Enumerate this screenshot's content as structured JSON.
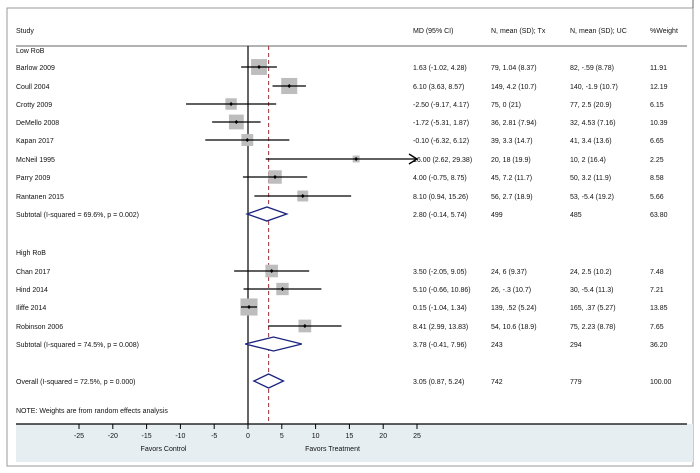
{
  "chart_data": {
    "type": "forest",
    "headers": {
      "study": "Study",
      "md": "MD (95% CI)",
      "tx": "N, mean (SD); Tx",
      "uc": "N, mean (SD); UC",
      "weight": "%Weight"
    },
    "groups": [
      {
        "label": "Low RoB",
        "studies": [
          {
            "name": "Barlow 2009",
            "md": 1.63,
            "lo": -1.02,
            "hi": 4.28,
            "ci": "1.63 (-1.02, 4.28)",
            "tx": "79, 1.04 (8.37)",
            "uc": "82, -.59 (8.78)",
            "weight": "11.91"
          },
          {
            "name": "Coull 2004",
            "md": 6.1,
            "lo": 3.63,
            "hi": 8.57,
            "ci": "6.10 (3.63, 8.57)",
            "tx": "149, 4.2 (10.7)",
            "uc": "140, -1.9 (10.7)",
            "weight": "12.19"
          },
          {
            "name": "Crotty 2009",
            "md": -2.5,
            "lo": -9.17,
            "hi": 4.17,
            "ci": "-2.50 (-9.17, 4.17)",
            "tx": "75, 0 (21)",
            "uc": "77, 2.5 (20.9)",
            "weight": "6.15"
          },
          {
            "name": "DeMello 2008",
            "md": -1.72,
            "lo": -5.31,
            "hi": 1.87,
            "ci": "-1.72 (-5.31, 1.87)",
            "tx": "36, 2.81 (7.94)",
            "uc": "32, 4.53 (7.16)",
            "weight": "10.39"
          },
          {
            "name": "Kapan 2017",
            "md": -0.1,
            "lo": -6.32,
            "hi": 6.12,
            "ci": "-0.10 (-6.32, 6.12)",
            "tx": "39, 3.3 (14.7)",
            "uc": "41, 3.4 (13.6)",
            "weight": "6.65"
          },
          {
            "name": "McNeil 1995",
            "md": 16.0,
            "lo": 2.62,
            "hi": 29.38,
            "ci": "16.00 (2.62, 29.38)",
            "tx": "20, 18 (19.9)",
            "uc": "10, 2 (16.4)",
            "weight": "2.25",
            "arrow": true
          },
          {
            "name": "Parry 2009",
            "md": 4.0,
            "lo": -0.75,
            "hi": 8.75,
            "ci": "4.00 (-0.75, 8.75)",
            "tx": "45, 7.2 (11.7)",
            "uc": "50, 3.2 (11.9)",
            "weight": "8.58"
          },
          {
            "name": "Rantanen 2015",
            "md": 8.1,
            "lo": 0.94,
            "hi": 15.26,
            "ci": "8.10 (0.94, 15.26)",
            "tx": "56, 2.7 (18.9)",
            "uc": "53, -5.4 (19.2)",
            "weight": "5.66"
          }
        ],
        "subtotal": {
          "label": "Subtotal  (I-squared = 69.6%, p = 0.002)",
          "md": 2.8,
          "lo": -0.14,
          "hi": 5.74,
          "ci": "2.80 (-0.14, 5.74)",
          "tx": "499",
          "uc": "485",
          "weight": "63.80"
        }
      },
      {
        "label": "High RoB",
        "studies": [
          {
            "name": "Chan 2017",
            "md": 3.5,
            "lo": -2.05,
            "hi": 9.05,
            "ci": "3.50 (-2.05, 9.05)",
            "tx": "24, 6 (9.37)",
            "uc": "24, 2.5 (10.2)",
            "weight": "7.48"
          },
          {
            "name": "Hind 2014",
            "md": 5.1,
            "lo": -0.66,
            "hi": 10.86,
            "ci": "5.10 (-0.66, 10.86)",
            "tx": "26, -.3 (10.7)",
            "uc": "30, -5.4 (11.3)",
            "weight": "7.21"
          },
          {
            "name": "Iliffe 2014",
            "md": 0.15,
            "lo": -1.04,
            "hi": 1.34,
            "ci": "0.15 (-1.04, 1.34)",
            "tx": "139, .52 (5.24)",
            "uc": "165, .37 (5.27)",
            "weight": "13.85"
          },
          {
            "name": "Robinson 2006",
            "md": 8.41,
            "lo": 2.99,
            "hi": 13.83,
            "ci": "8.41 (2.99, 13.83)",
            "tx": "54, 10.6 (18.9)",
            "uc": "75, 2.23 (8.78)",
            "weight": "7.65"
          }
        ],
        "subtotal": {
          "label": "Subtotal  (I-squared = 74.5%, p = 0.008)",
          "md": 3.78,
          "lo": -0.41,
          "hi": 7.96,
          "ci": "3.78 (-0.41, 7.96)",
          "tx": "243",
          "uc": "294",
          "weight": "36.20"
        }
      }
    ],
    "overall": {
      "label": "Overall  (I-squared = 72.5%, p = 0.000)",
      "md": 3.05,
      "lo": 0.87,
      "hi": 5.24,
      "ci": "3.05 (0.87, 5.24)",
      "tx": "742",
      "uc": "779",
      "weight": "100.00"
    },
    "note": "NOTE: Weights are from random effects analysis",
    "xlim": [
      -25,
      25
    ],
    "xticks": [
      -25,
      -20,
      -15,
      -10,
      -5,
      0,
      5,
      10,
      15,
      20,
      25
    ],
    "xlabel_left": "Favors Control",
    "xlabel_right": "Favors Treatment",
    "colors": {
      "box": "#bdbdbd",
      "diamond": "#1a237e",
      "overall_line": "#a0303a",
      "axis_bg": "#e6eef2"
    }
  }
}
